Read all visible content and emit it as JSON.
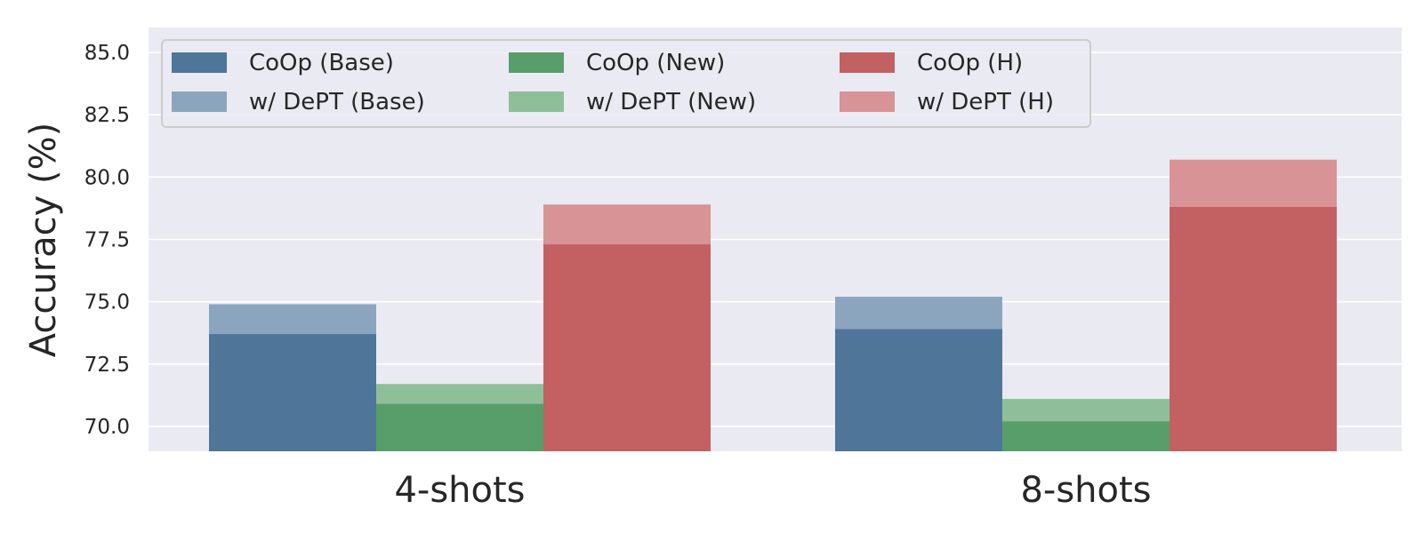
{
  "chart_data": {
    "type": "bar",
    "categories": [
      "4-shots",
      "8-shots"
    ],
    "ylabel": "Accuracy (%)",
    "xlabel": "",
    "ylim": [
      69.0,
      86.0
    ],
    "yticks": [
      "70.0",
      "72.5",
      "75.0",
      "77.5",
      "80.0",
      "82.5",
      "85.0"
    ],
    "grid": true,
    "legend": "top-left",
    "groups": [
      {
        "name": "Base",
        "base_label": "CoOp (Base)",
        "dept_label": "w/ DePT (Base)",
        "coop": [
          73.7,
          73.9
        ],
        "dept": [
          74.9,
          75.2
        ],
        "color": "#4f7599",
        "light_color": "#8ba5be"
      },
      {
        "name": "New",
        "base_label": "CoOp (New)",
        "dept_label": "w/ DePT (New)",
        "coop": [
          70.9,
          70.2
        ],
        "dept": [
          71.7,
          71.1
        ],
        "color": "#579e6a",
        "light_color": "#8fbf98"
      },
      {
        "name": "H",
        "base_label": "CoOp (H)",
        "dept_label": "w/ DePT (H)",
        "coop": [
          77.3,
          78.8
        ],
        "dept": [
          78.9,
          80.7
        ],
        "color": "#c26062",
        "light_color": "#d79395"
      }
    ]
  }
}
